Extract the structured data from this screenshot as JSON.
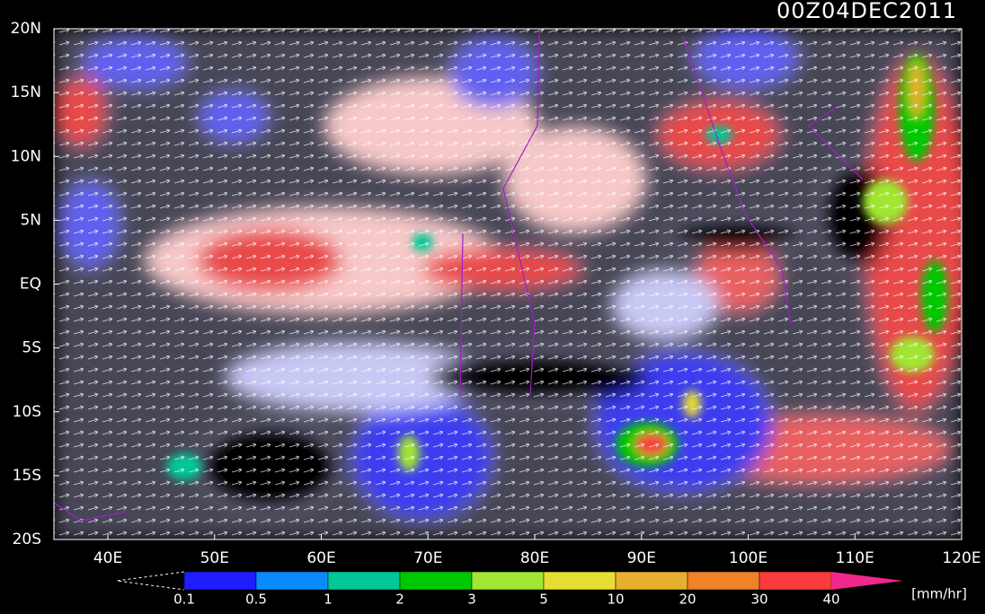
{
  "header": {
    "timestamp": "00Z04DEC2011"
  },
  "map": {
    "lat_labels": [
      "20N",
      "15N",
      "10N",
      "5N",
      "EQ",
      "5S",
      "10S",
      "15S",
      "20S"
    ],
    "lon_labels": [
      "40E",
      "50E",
      "60E",
      "70E",
      "80E",
      "90E",
      "100E",
      "110E",
      "120E"
    ]
  },
  "colorbar": {
    "labels": [
      "0.1",
      "0.5",
      "1",
      "2",
      "3",
      "5",
      "10",
      "20",
      "30",
      "40"
    ],
    "colors": [
      "#1e1eff",
      "#0a8cff",
      "#00c896",
      "#00c800",
      "#a0e632",
      "#e6dc32",
      "#e6af2d",
      "#f08228",
      "#fa3c3c"
    ],
    "over_color": "#f0288c",
    "unit": "[mm/hr]"
  }
}
